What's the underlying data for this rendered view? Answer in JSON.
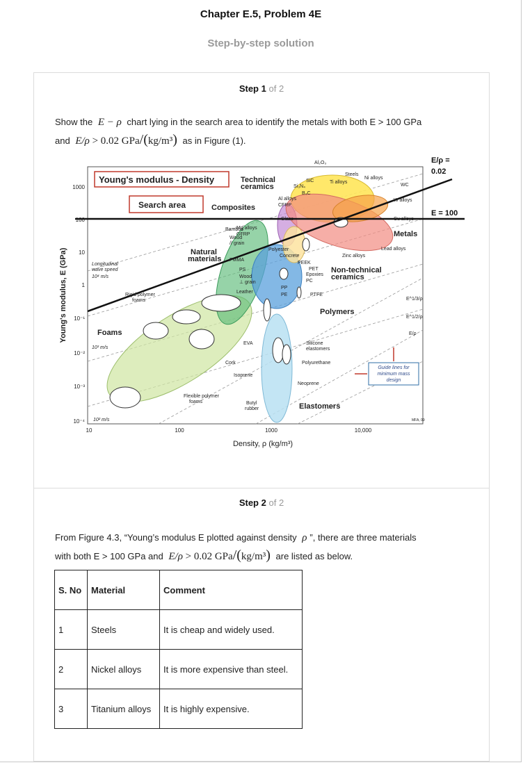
{
  "header": {
    "title": "Chapter E.5, Problem 4E",
    "subtitle": "Step-by-step solution"
  },
  "step1": {
    "step_word": "Step",
    "number": "1",
    "of_text": "of 2",
    "line1_pre": "Show the ",
    "line1_math": "E − ρ",
    "line1_post": " chart lying in the search area to identify the metals with both E > 100 GPa",
    "line2_pre": "and ",
    "line2_post": " as in Figure (1)."
  },
  "step2": {
    "step_word": "Step",
    "number": "2",
    "of_text": "of 2",
    "line1_pre": "From Figure 4.3, “Young’s modulus E plotted against density ",
    "line1_math": "ρ",
    "line1_post": "”, there are three materials",
    "line2_pre": "with both E > 100 GPa and ",
    "line2_post": " are listed as below."
  },
  "math": {
    "e_rho": "E/ρ",
    "gt_value": "> 0.02 GPa",
    "unit": "kg/m³"
  },
  "table": {
    "headers": [
      "S. No",
      "Material",
      "Comment"
    ],
    "rows": [
      [
        "1",
        "Steels",
        "It is cheap and widely used."
      ],
      [
        "2",
        "Nickel alloys",
        "It is more expensive than steel."
      ],
      [
        "3",
        "Titanium alloys",
        "It is highly expensive."
      ]
    ]
  },
  "chart_data": {
    "type": "scatter",
    "title": "Young's modulus - Density",
    "xlabel": "Density, ρ (kg/m³)",
    "ylabel": "Young's modulus, E (GPa)",
    "x_scale": "log",
    "y_scale": "log",
    "xlim": [
      10,
      50000
    ],
    "ylim": [
      0.0001,
      3000
    ],
    "x_ticks": [
      "10",
      "100",
      "1000",
      "10,000"
    ],
    "y_ticks": [
      "10⁻⁴",
      "10⁻³",
      "10⁻²",
      "10⁻¹",
      "1",
      "10",
      "100",
      "1000"
    ],
    "annotations": {
      "search_area": "Search area",
      "e_rho_line": [
        "E/ρ =",
        "0.02"
      ],
      "e_line": "E = 100",
      "family_labels": [
        "Technical ceramics",
        "Composites",
        "Metals",
        "Non-technical ceramics",
        "Natural materials",
        "Polymers",
        "Foams",
        "Elastomers"
      ],
      "material_labels": [
        "Al₂O₃",
        "Steels",
        "SiC",
        "Ti alloys",
        "Ni alloys",
        "B₄C",
        "Si₃N₄",
        "WC",
        "W alloys",
        "Al alloys",
        "CFRP",
        "Glass",
        "Mg alloys",
        "Cu alloys",
        "Bamboo",
        "GFRP",
        "Wood",
        "// grain",
        "Lead alloys",
        "Polyester",
        "Concrete",
        "Zinc alloys",
        "PMMA",
        "PEEK",
        "PET",
        "Epoxies",
        "PC",
        "PS",
        "Wood",
        "⊥ grain",
        "PP",
        "PE",
        "Leather",
        "PTFE",
        "Rigid polymer",
        "foams",
        "EVA",
        "Silicone",
        "elastomers",
        "Polyurethane",
        "Cork",
        "Isoprene",
        "Neoprene",
        "Flexible polymer",
        "foams",
        "Butyl",
        "rubber"
      ],
      "wave_speed": [
        "Longitudinal",
        "wave speed",
        "10⁴ m/s",
        "10³ m/s",
        "10² m/s"
      ],
      "guide_box": [
        "Guide lines for",
        "minimum mass",
        "design"
      ],
      "slope_labels": [
        "E^1/3/ρ",
        "E^1/2/ρ",
        "E/ρ"
      ],
      "credit": "MFA, 09"
    },
    "highlighted_materials": [
      "Steels",
      "Ni alloys",
      "Ti alloys"
    ]
  }
}
